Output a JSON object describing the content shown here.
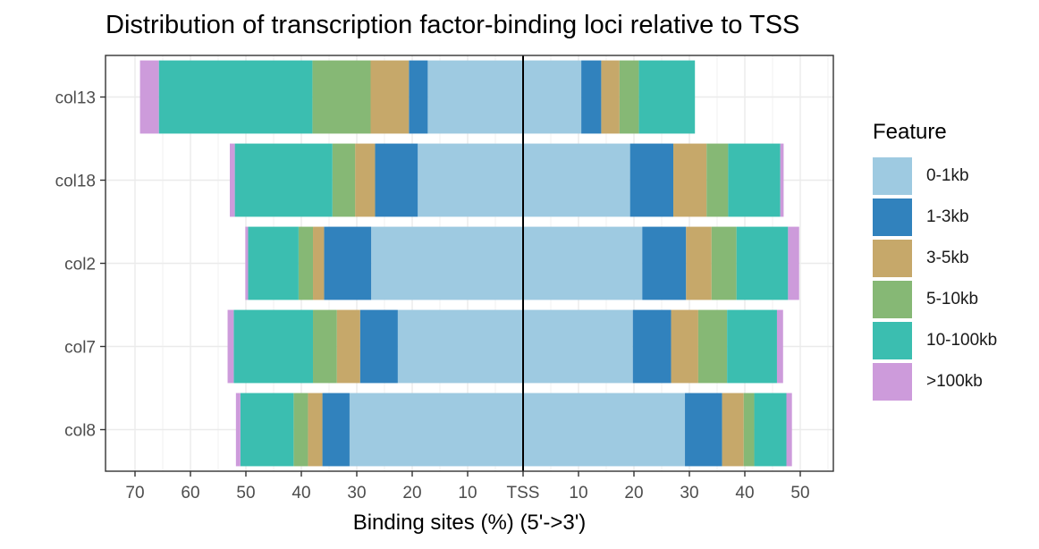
{
  "chart_data": {
    "type": "bar",
    "orientation": "horizontal-diverging",
    "title": "Distribution of transcription factor-binding loci relative to TSS",
    "xlabel": "Binding sites (%) (5'->3')",
    "ylabel": "",
    "x_tick_labels": [
      "70",
      "60",
      "50",
      "40",
      "30",
      "20",
      "10",
      "TSS",
      "10",
      "20",
      "30",
      "40",
      "50"
    ],
    "xlim": [
      -75,
      55
    ],
    "grid": true,
    "legend_position": "right",
    "legend_title": "Feature",
    "categories": [
      "col13",
      "col18",
      "col2",
      "col7",
      "col8"
    ],
    "series": [
      {
        "name": "0-1kb",
        "color": "#9ECAE1",
        "upstream": [
          17.2,
          19.0,
          27.4,
          22.6,
          31.3
        ],
        "downstream": [
          10.5,
          19.3,
          21.5,
          19.8,
          29.2
        ]
      },
      {
        "name": "1-3kb",
        "color": "#3182BD",
        "upstream": [
          3.4,
          7.7,
          8.5,
          6.8,
          4.9
        ],
        "downstream": [
          3.6,
          7.8,
          7.9,
          6.9,
          6.7
        ]
      },
      {
        "name": "3-5kb",
        "color": "#C6A86A",
        "upstream": [
          6.9,
          3.6,
          2.0,
          4.2,
          2.6
        ],
        "downstream": [
          3.3,
          6.0,
          4.6,
          4.9,
          3.9
        ]
      },
      {
        "name": "5-10kb",
        "color": "#86B875",
        "upstream": [
          10.5,
          4.1,
          2.6,
          4.3,
          2.6
        ],
        "downstream": [
          3.5,
          3.9,
          4.5,
          5.2,
          1.9
        ]
      },
      {
        "name": "10-100kb",
        "color": "#3BBEB0",
        "upstream": [
          27.7,
          17.6,
          9.1,
          14.3,
          9.6
        ],
        "downstream": [
          10.1,
          9.4,
          9.3,
          9.0,
          5.8
        ]
      },
      {
        "name": ">100kb",
        "color": "#CD9BDB",
        "upstream": [
          3.4,
          0.9,
          0.5,
          1.1,
          0.8
        ],
        "downstream": [
          0.0,
          0.6,
          2.0,
          1.1,
          1.0
        ]
      }
    ]
  }
}
